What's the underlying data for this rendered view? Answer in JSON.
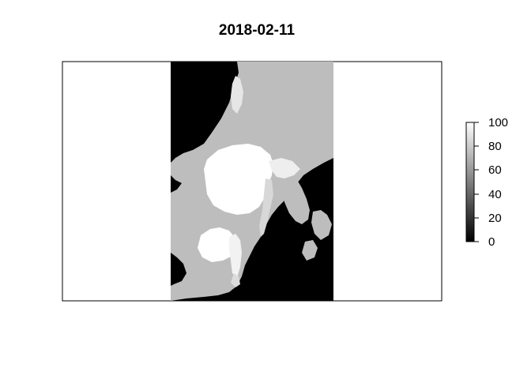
{
  "map": {
    "title": "2018-02-11",
    "colors": {
      "land": "#bdbdbd",
      "open_water": "#000000",
      "ice": "#ffffff",
      "frame": "#000000"
    }
  },
  "legend": {
    "ticks": [
      "0",
      "20",
      "40",
      "60",
      "80",
      "100"
    ],
    "range": [
      0,
      100
    ],
    "gradient": [
      "#000000",
      "#ffffff"
    ]
  }
}
